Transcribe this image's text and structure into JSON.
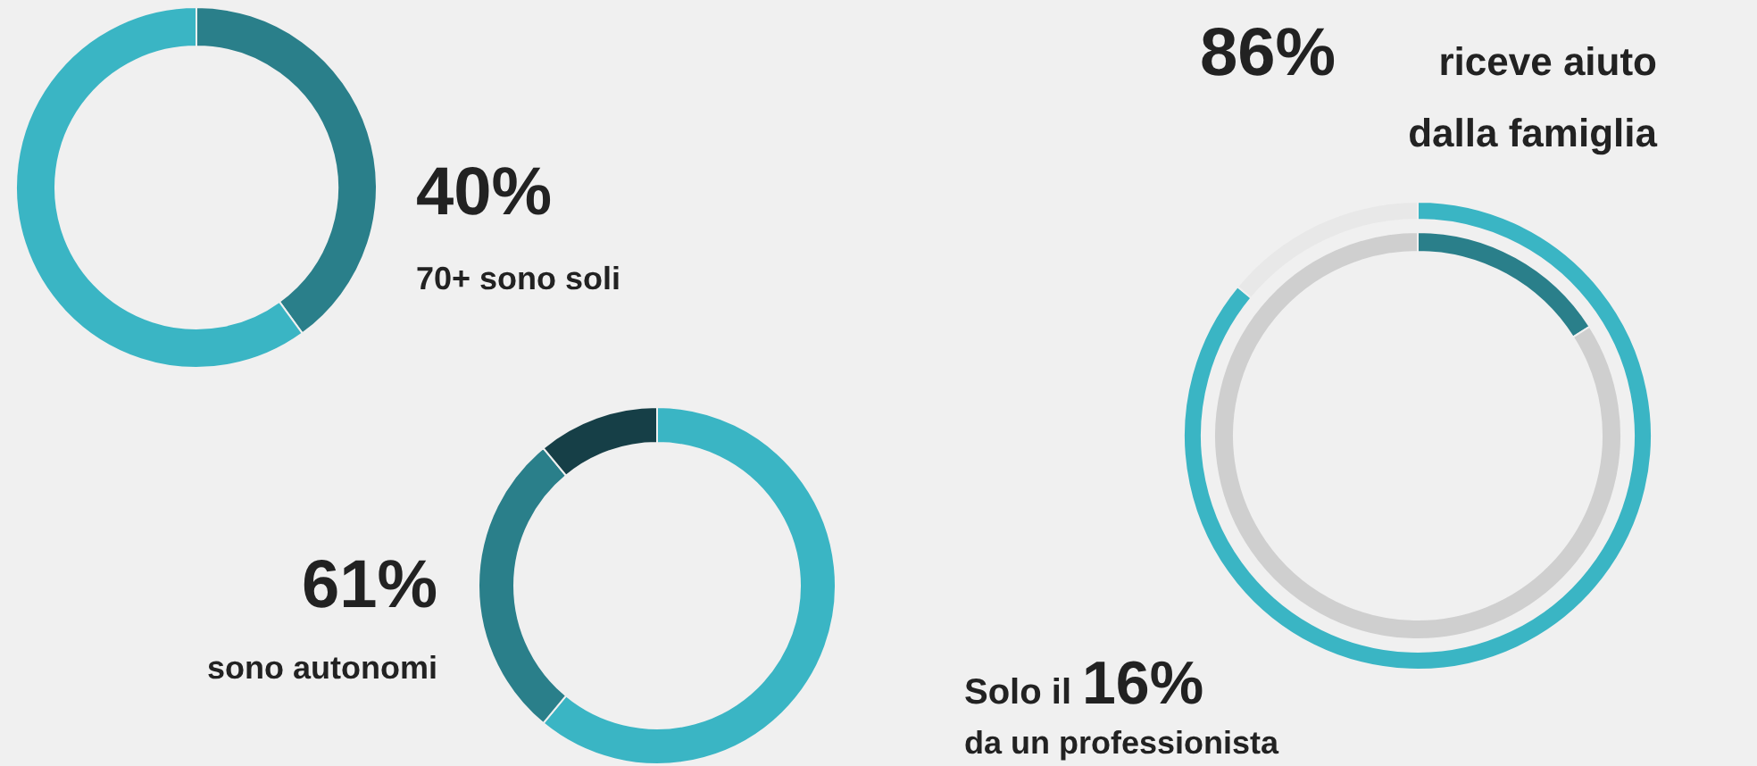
{
  "chart_data": [
    {
      "type": "donut",
      "categories": [
        null,
        null
      ],
      "values": [
        40,
        60
      ],
      "colors": [
        "#2a7f8a",
        "#3ab5c4"
      ],
      "annotations": [
        "40%",
        "70+ sono soli"
      ]
    },
    {
      "type": "donut",
      "categories": [
        null,
        null,
        null
      ],
      "values": [
        61,
        28,
        11
      ],
      "colors": [
        "#3ab5c4",
        "#2a7f8a",
        "#163f47"
      ],
      "annotations": [
        "61%",
        "sono autonomi"
      ]
    },
    {
      "type": "donut",
      "categories": [
        null,
        null
      ],
      "values": [
        86,
        14
      ],
      "colors": [
        "#3ab5c4",
        "#e8e8e8"
      ],
      "annotations": [
        "86%",
        "riceve aiuto",
        "dalla famiglia"
      ]
    },
    {
      "type": "donut",
      "categories": [
        null,
        null
      ],
      "values": [
        16,
        84
      ],
      "colors": [
        "#2a7f8a",
        "#cfcfcf"
      ],
      "annotations": [
        "Solo il",
        "16%",
        "da un professionista"
      ]
    }
  ]
}
